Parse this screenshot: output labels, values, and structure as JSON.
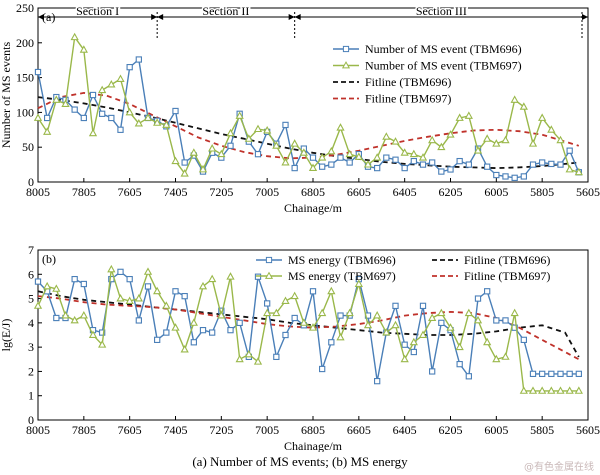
{
  "caption": "(a) Number of MS events; (b) MS energy",
  "watermark": "@有色金属在线",
  "colors": {
    "tbm696": "#4a7fb8",
    "tbm697": "#9ab84a",
    "fit696": "#111111",
    "fit697": "#c0322b"
  },
  "chart_data": [
    {
      "type": "line",
      "panel_label": "(a)",
      "xlabel": "Chainage/m",
      "ylabel": "Number of MS events",
      "xlim": [
        8005,
        5605
      ],
      "ylim": [
        0,
        250
      ],
      "xticks": [
        8005,
        7805,
        7605,
        7405,
        7205,
        7005,
        6805,
        6605,
        6405,
        6205,
        6005,
        5805,
        5605
      ],
      "yticks": [
        0,
        50,
        100,
        150,
        200,
        250
      ],
      "sections": [
        {
          "label": "Section I",
          "from": 8005,
          "to": 7485
        },
        {
          "label": "Section II",
          "from": 7485,
          "to": 6885
        },
        {
          "label": "Section III",
          "from": 6885,
          "to": 5605
        }
      ],
      "legend": [
        "Number of MS event (TBM696)",
        "Number of MS event (TBM697)",
        "Fitline (TBM696)",
        "Fitline (TBM697)"
      ],
      "series": [
        {
          "name": "Number of MS event (TBM696)",
          "marker": "square",
          "x": [
            8005,
            7965,
            7925,
            7885,
            7845,
            7805,
            7765,
            7725,
            7685,
            7645,
            7605,
            7565,
            7525,
            7485,
            7445,
            7405,
            7365,
            7325,
            7285,
            7245,
            7205,
            7165,
            7125,
            7085,
            7045,
            7005,
            6965,
            6925,
            6885,
            6845,
            6805,
            6765,
            6725,
            6685,
            6645,
            6605,
            6565,
            6525,
            6485,
            6445,
            6405,
            6365,
            6325,
            6285,
            6245,
            6205,
            6165,
            6125,
            6085,
            6045,
            6005,
            5965,
            5925,
            5885,
            5845,
            5805,
            5765,
            5725,
            5685,
            5645
          ],
          "y": [
            158,
            92,
            122,
            118,
            104,
            92,
            125,
            98,
            92,
            75,
            165,
            176,
            92,
            88,
            80,
            102,
            28,
            38,
            15,
            42,
            35,
            52,
            98,
            58,
            40,
            72,
            55,
            82,
            20,
            48,
            35,
            22,
            25,
            35,
            28,
            40,
            22,
            20,
            35,
            32,
            20,
            30,
            25,
            28,
            15,
            18,
            30,
            25,
            48,
            22,
            10,
            8,
            6,
            8,
            25,
            28,
            26,
            25,
            45,
            14
          ]
        },
        {
          "name": "Number of MS event (TBM697)",
          "marker": "triangle",
          "x": [
            8005,
            7965,
            7925,
            7885,
            7845,
            7805,
            7765,
            7725,
            7685,
            7645,
            7605,
            7565,
            7525,
            7485,
            7445,
            7405,
            7365,
            7325,
            7285,
            7245,
            7205,
            7165,
            7125,
            7085,
            7045,
            7005,
            6965,
            6925,
            6885,
            6845,
            6805,
            6765,
            6725,
            6685,
            6645,
            6605,
            6565,
            6525,
            6485,
            6445,
            6405,
            6365,
            6325,
            6285,
            6245,
            6205,
            6165,
            6125,
            6085,
            6045,
            6005,
            5965,
            5925,
            5885,
            5845,
            5805,
            5765,
            5725,
            5685,
            5645
          ],
          "y": [
            92,
            72,
            118,
            112,
            208,
            190,
            70,
            132,
            140,
            148,
            100,
            84,
            92,
            85,
            82,
            30,
            12,
            42,
            18,
            48,
            40,
            70,
            95,
            62,
            76,
            74,
            52,
            28,
            55,
            42,
            20,
            35,
            44,
            78,
            40,
            36,
            25,
            35,
            65,
            58,
            42,
            40,
            35,
            60,
            50,
            68,
            92,
            95,
            45,
            62,
            55,
            60,
            118,
            108,
            55,
            92,
            75,
            60,
            18,
            14
          ]
        }
      ],
      "fit_lines": [
        {
          "name": "Fitline (TBM696)",
          "x": [
            8005,
            7905,
            7805,
            7705,
            7605,
            7505,
            7405,
            7305,
            7205,
            7105,
            7005,
            6905,
            6805,
            6705,
            6605,
            6505,
            6405,
            6305,
            6205,
            6105,
            6005,
            5905,
            5805,
            5705,
            5645
          ],
          "y": [
            122,
            118,
            113,
            107,
            100,
            93,
            85,
            77,
            69,
            62,
            55,
            48,
            42,
            37,
            33,
            29,
            26,
            24,
            22,
            21,
            20,
            21,
            23,
            26,
            28
          ]
        },
        {
          "name": "Fitline (TBM697)",
          "x": [
            8005,
            7905,
            7805,
            7705,
            7605,
            7505,
            7405,
            7305,
            7205,
            7105,
            7005,
            6905,
            6805,
            6705,
            6605,
            6505,
            6405,
            6305,
            6205,
            6105,
            6005,
            5905,
            5805,
            5705,
            5645
          ],
          "y": [
            106,
            122,
            128,
            124,
            112,
            96,
            80,
            64,
            52,
            43,
            37,
            34,
            35,
            39,
            45,
            52,
            59,
            65,
            70,
            74,
            75,
            73,
            68,
            58,
            52
          ]
        }
      ]
    },
    {
      "type": "line",
      "panel_label": "(b)",
      "xlabel": "Chainage/m",
      "ylabel": "lg(E/J)",
      "xlim": [
        8005,
        5605
      ],
      "ylim": [
        0,
        7
      ],
      "xticks": [
        8005,
        7805,
        7605,
        7405,
        7205,
        7005,
        6805,
        6605,
        6405,
        6205,
        6005,
        5805,
        5605
      ],
      "yticks": [
        0,
        1,
        2,
        3,
        4,
        5,
        6,
        7
      ],
      "legend": [
        "MS energy (TBM696)",
        "MS energy (TBM697)",
        "Fitline (TBM696)",
        "Fitline (TBM697)"
      ],
      "series": [
        {
          "name": "MS energy (TBM696)",
          "marker": "square",
          "x": [
            8005,
            7965,
            7925,
            7885,
            7845,
            7805,
            7765,
            7725,
            7685,
            7645,
            7605,
            7565,
            7525,
            7485,
            7445,
            7405,
            7365,
            7325,
            7285,
            7245,
            7205,
            7165,
            7125,
            7085,
            7045,
            7005,
            6965,
            6925,
            6885,
            6845,
            6805,
            6765,
            6725,
            6685,
            6645,
            6605,
            6565,
            6525,
            6485,
            6445,
            6405,
            6365,
            6325,
            6285,
            6245,
            6205,
            6165,
            6125,
            6085,
            6045,
            6005,
            5965,
            5925,
            5885,
            5845,
            5805,
            5765,
            5725,
            5685,
            5645
          ],
          "y": [
            5.7,
            5.3,
            4.2,
            4.2,
            5.8,
            5.6,
            3.7,
            3.6,
            5.8,
            6.1,
            5.8,
            4.1,
            5.5,
            3.3,
            3.6,
            5.3,
            5.1,
            3.2,
            3.7,
            3.6,
            4.5,
            3.7,
            4.0,
            2.6,
            5.9,
            4.8,
            2.6,
            3.5,
            4.2,
            3.9,
            5.3,
            2.1,
            3.2,
            4.3,
            4.3,
            5.8,
            4.3,
            1.6,
            3.6,
            4.7,
            3.1,
            2.8,
            4.7,
            2.0,
            4.0,
            3.7,
            2.3,
            1.8,
            5.0,
            5.3,
            4.1,
            4.1,
            3.8,
            3.3,
            1.9,
            1.9,
            1.9,
            1.9,
            1.9,
            1.9
          ]
        },
        {
          "name": "MS energy (TBM697)",
          "marker": "triangle",
          "x": [
            8005,
            7965,
            7925,
            7885,
            7845,
            7805,
            7765,
            7725,
            7685,
            7645,
            7605,
            7565,
            7525,
            7485,
            7445,
            7405,
            7365,
            7325,
            7285,
            7245,
            7205,
            7165,
            7125,
            7085,
            7045,
            7005,
            6965,
            6925,
            6885,
            6845,
            6805,
            6765,
            6725,
            6685,
            6645,
            6605,
            6565,
            6525,
            6485,
            6445,
            6405,
            6365,
            6325,
            6285,
            6245,
            6205,
            6165,
            6125,
            6085,
            6045,
            6005,
            5965,
            5925,
            5885,
            5845,
            5805,
            5765,
            5725,
            5685,
            5645
          ],
          "y": [
            4.7,
            5.5,
            5.4,
            4.3,
            4.1,
            4.3,
            3.5,
            3.1,
            6.2,
            5.0,
            4.9,
            5.0,
            6.1,
            5.3,
            4.7,
            3.8,
            2.9,
            4.0,
            5.5,
            5.8,
            4.3,
            5.9,
            2.5,
            2.7,
            2.4,
            4.4,
            4.4,
            4.9,
            5.1,
            4.0,
            3.8,
            4.4,
            5.3,
            3.4,
            4.4,
            5.6,
            3.9,
            4.3,
            3.6,
            3.9,
            2.5,
            3.2,
            3.5,
            4.2,
            4.4,
            3.8,
            3.0,
            4.4,
            4.1,
            3.2,
            2.5,
            2.6,
            4.4,
            1.2,
            1.2,
            1.2,
            1.2,
            1.2,
            1.2,
            1.2
          ]
        }
      ],
      "fit_lines": [
        {
          "name": "Fitline (TBM696)",
          "x": [
            8005,
            7905,
            7805,
            7705,
            7605,
            7505,
            7405,
            7305,
            7205,
            7105,
            7005,
            6905,
            6805,
            6705,
            6605,
            6505,
            6405,
            6305,
            6205,
            6105,
            6005,
            5905,
            5805,
            5705,
            5645
          ],
          "y": [
            5.3,
            5.1,
            4.95,
            4.85,
            4.75,
            4.65,
            4.55,
            4.45,
            4.35,
            4.25,
            4.15,
            4.0,
            3.9,
            3.8,
            3.7,
            3.6,
            3.55,
            3.5,
            3.5,
            3.55,
            3.65,
            3.8,
            3.9,
            3.6,
            2.6
          ]
        },
        {
          "name": "Fitline (TBM697)",
          "x": [
            8005,
            7905,
            7805,
            7705,
            7605,
            7505,
            7405,
            7305,
            7205,
            7105,
            7005,
            6905,
            6805,
            6705,
            6605,
            6505,
            6405,
            6305,
            6205,
            6105,
            6005,
            5905,
            5805,
            5705,
            5645
          ],
          "y": [
            5.1,
            5.0,
            4.85,
            4.75,
            4.7,
            4.65,
            4.55,
            4.4,
            4.25,
            4.1,
            3.95,
            3.85,
            3.8,
            3.85,
            3.95,
            4.1,
            4.3,
            4.4,
            4.45,
            4.4,
            4.2,
            3.8,
            3.3,
            2.8,
            2.5
          ]
        }
      ]
    }
  ]
}
